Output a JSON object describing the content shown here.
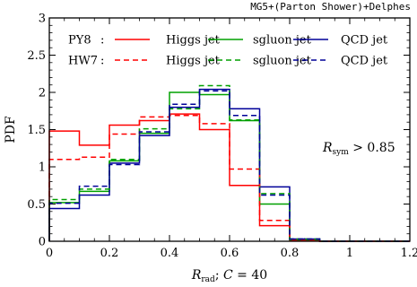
{
  "chart_data": {
    "type": "line",
    "header": "MG5+(Parton Shower)+Delphes",
    "xlabel": "R_rad; C = 40",
    "ylabel": "PDF",
    "xlim": [
      0,
      1.2
    ],
    "ylim": [
      0,
      3
    ],
    "x_ticks": [
      "0",
      "0.2",
      "0.4",
      "0.6",
      "0.8",
      "1",
      "1.2"
    ],
    "y_ticks": [
      "0",
      "0.5",
      "1",
      "1.5",
      "2",
      "2.5",
      "3"
    ],
    "annotation": "R_sym > 0.85",
    "bin_edges": [
      0,
      0.1,
      0.2,
      0.3,
      0.4,
      0.5,
      0.6,
      0.7,
      0.8,
      0.9,
      1.0,
      1.1,
      1.2
    ],
    "legend_rows": [
      {
        "generator": "PY8",
        "separator": ":"
      },
      {
        "generator": "HW7",
        "separator": ":"
      }
    ],
    "series": [
      {
        "name": "Higgs jet",
        "generator": "PY8",
        "color": "#ff0000",
        "style": "solid",
        "values": [
          1.48,
          1.29,
          1.56,
          1.62,
          1.71,
          1.5,
          0.75,
          0.21,
          0.01,
          0,
          0,
          0
        ]
      },
      {
        "name": "sgluon jet",
        "generator": "PY8",
        "color": "#00a000",
        "style": "solid",
        "values": [
          0.52,
          0.67,
          1.08,
          1.45,
          2.0,
          1.97,
          1.62,
          0.5,
          0.02,
          0,
          0,
          0
        ]
      },
      {
        "name": "QCD jet",
        "generator": "PY8",
        "color": "#000099",
        "style": "solid",
        "values": [
          0.44,
          0.62,
          1.05,
          1.42,
          1.8,
          2.04,
          1.78,
          0.73,
          0.03,
          0,
          0,
          0
        ]
      },
      {
        "name": "Higgs jet",
        "generator": "HW7",
        "color": "#ff0000",
        "style": "dashed",
        "values": [
          1.1,
          1.13,
          1.44,
          1.67,
          1.69,
          1.58,
          0.97,
          0.28,
          0.01,
          0,
          0,
          0
        ]
      },
      {
        "name": "sgluon jet",
        "generator": "HW7",
        "color": "#00a000",
        "style": "dashed",
        "values": [
          0.56,
          0.7,
          1.1,
          1.51,
          1.78,
          2.09,
          1.63,
          0.64,
          0.03,
          0,
          0,
          0
        ]
      },
      {
        "name": "QCD jet",
        "generator": "HW7",
        "color": "#000099",
        "style": "dashed",
        "values": [
          0.51,
          0.74,
          1.03,
          1.47,
          1.84,
          2.02,
          1.69,
          0.62,
          0.03,
          0,
          0,
          0
        ]
      }
    ]
  }
}
